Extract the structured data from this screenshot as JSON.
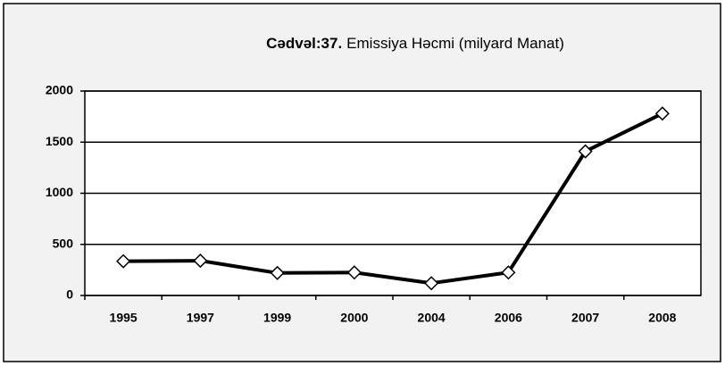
{
  "chart_data": {
    "type": "line",
    "title_label": "Cədvəl:37.",
    "title": "Emissiya Həcmi (milyard Manat)",
    "categories": [
      "1995",
      "1997",
      "1999",
      "2000",
      "2004",
      "2006",
      "2007",
      "2008"
    ],
    "series": [
      {
        "name": "Emissiya",
        "color": "#000000",
        "values": [
          335,
          340,
          220,
          225,
          120,
          225,
          1410,
          1780
        ]
      }
    ],
    "ylim": [
      0,
      2000
    ],
    "yticks": [
      0,
      500,
      1000,
      1500,
      2000
    ],
    "grid": true
  }
}
